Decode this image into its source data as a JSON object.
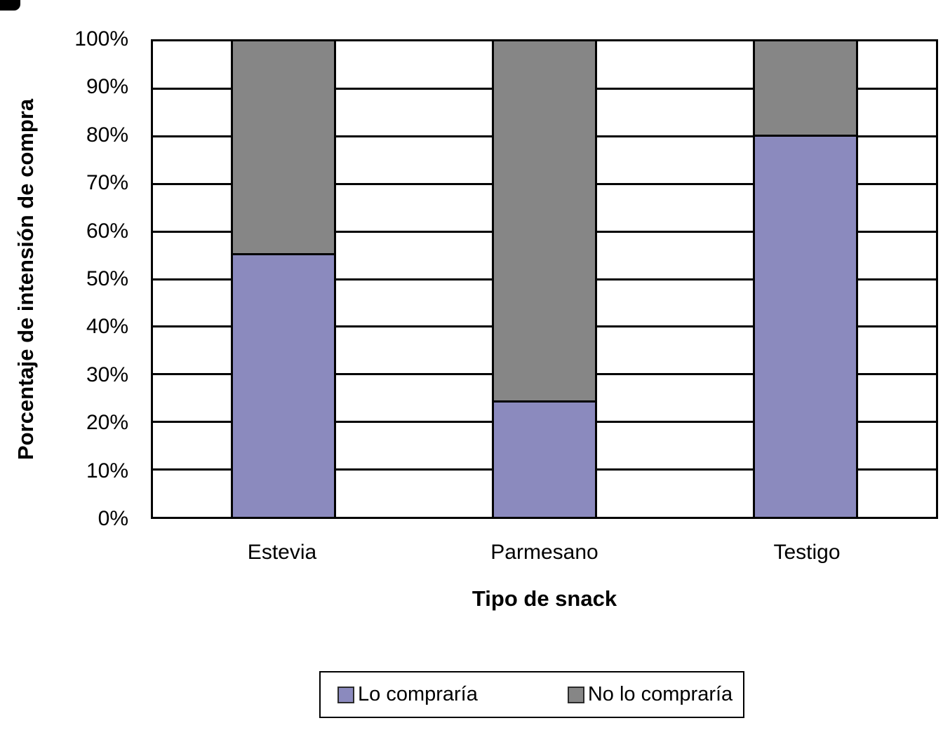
{
  "chart_data": {
    "type": "bar",
    "subtype": "stacked-100-percent",
    "title": "",
    "xlabel": "Tipo de snack",
    "ylabel": "Porcentaje de intensión de compra",
    "categories": [
      "Estevia",
      "Parmesano",
      "Testigo"
    ],
    "series": [
      {
        "name": "Lo compraría",
        "color": "#8B8ABE",
        "values": [
          55,
          24,
          80
        ]
      },
      {
        "name": "No lo compraría",
        "color": "#868686",
        "values": [
          45,
          76,
          20
        ]
      }
    ],
    "ylim": [
      0,
      100
    ],
    "ytick_step": 10,
    "ytick_labels": [
      "0%",
      "10%",
      "20%",
      "30%",
      "40%",
      "50%",
      "60%",
      "70%",
      "80%",
      "90%",
      "100%"
    ],
    "grid": true,
    "gridline_color": "#000000",
    "axis_color": "#000000",
    "background": "#ffffff",
    "legend_position": "bottom"
  }
}
